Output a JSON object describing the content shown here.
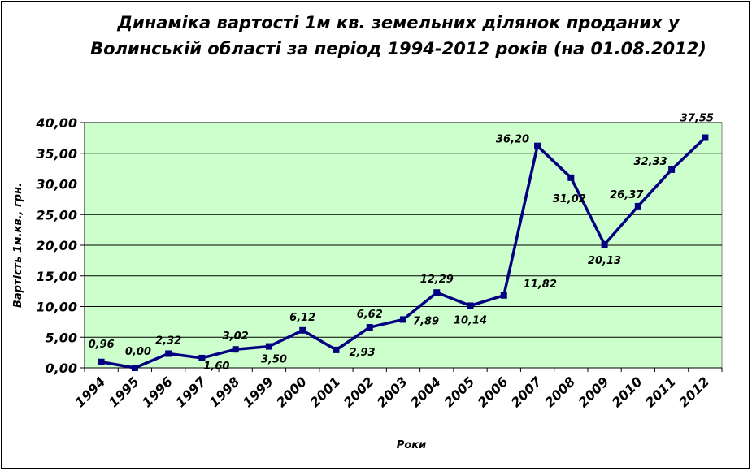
{
  "chart_data": {
    "type": "line",
    "title": "Динаміка вартості 1м кв. земельних ділянок проданих у Волинській області за період 1994-2012 років (на 01.08.2012)",
    "xlabel": "Роки",
    "ylabel": "Вартість 1м.кв., грн.",
    "categories": [
      "1994",
      "1995",
      "1996",
      "1997",
      "1998",
      "1999",
      "2000",
      "2001",
      "2002",
      "2003",
      "2004",
      "2005",
      "2006",
      "2007",
      "2008",
      "2009",
      "2010",
      "2011",
      "2012"
    ],
    "values": [
      0.96,
      0.0,
      2.32,
      1.6,
      3.02,
      3.5,
      6.12,
      2.93,
      6.62,
      7.89,
      12.29,
      10.14,
      11.82,
      36.2,
      31.02,
      20.13,
      26.37,
      32.33,
      37.55
    ],
    "value_labels": [
      "0,96",
      "0,00",
      "2,32",
      "1,60",
      "3,02",
      "3,50",
      "6,12",
      "2,93",
      "6,62",
      "7,89",
      "12,29",
      "10,14",
      "11,82",
      "36,20",
      "31,02",
      "20,13",
      "26,37",
      "32,33",
      "37,55"
    ],
    "ylim": [
      0,
      40
    ],
    "yticks": [
      "0,00",
      "5,00",
      "10,00",
      "15,00",
      "20,00",
      "25,00",
      "30,00",
      "35,00",
      "40,00"
    ],
    "grid": true,
    "legend": false,
    "colors": {
      "line": "#000080",
      "plot_bg": "#CCFFCC",
      "grid": "#000000"
    }
  }
}
